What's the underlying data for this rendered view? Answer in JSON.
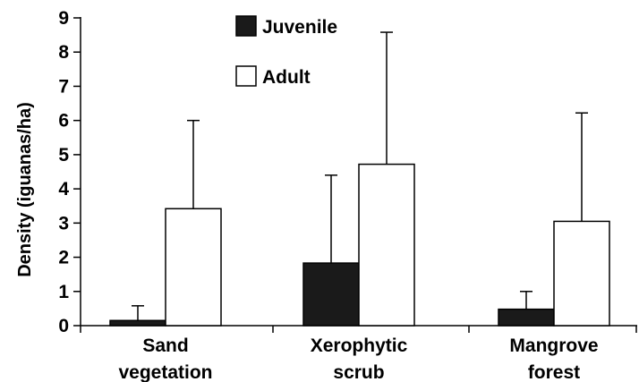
{
  "chart_data": {
    "type": "bar",
    "title": "",
    "xlabel": "",
    "ylabel": "Density (iguanas/ha)",
    "ylim": [
      0,
      9
    ],
    "yticks": [
      0,
      1,
      2,
      3,
      4,
      5,
      6,
      7,
      8,
      9
    ],
    "grid": false,
    "legend_position": "top-center",
    "categories": [
      {
        "lines": [
          "Sand",
          "vegetation"
        ]
      },
      {
        "lines": [
          "Xerophytic",
          "scrub"
        ]
      },
      {
        "lines": [
          "Mangrove",
          "forest"
        ]
      }
    ],
    "series": [
      {
        "name": "Juvenile",
        "color": "#1a1a1a",
        "values": [
          0.15,
          1.83,
          0.48
        ],
        "error_upper": [
          0.58,
          4.4,
          1.0
        ]
      },
      {
        "name": "Adult",
        "color": "#ffffff",
        "values": [
          3.42,
          4.72,
          3.05
        ],
        "error_upper": [
          6.0,
          8.58,
          6.22
        ]
      }
    ]
  }
}
